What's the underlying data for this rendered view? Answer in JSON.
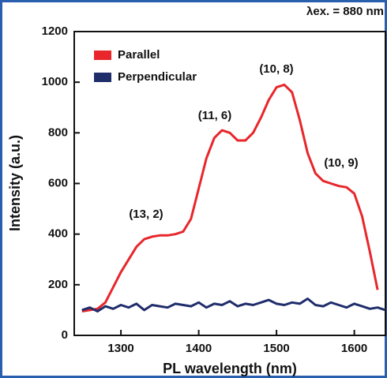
{
  "chart_data": {
    "type": "line",
    "title": "λex. = 880 nm",
    "x_label": "PL wavelength (nm)",
    "y_label": "Intensity (a.u.)",
    "x": [
      1250,
      1260,
      1270,
      1280,
      1290,
      1300,
      1310,
      1320,
      1330,
      1340,
      1350,
      1360,
      1370,
      1380,
      1390,
      1400,
      1410,
      1420,
      1430,
      1440,
      1450,
      1460,
      1470,
      1480,
      1490,
      1500,
      1510,
      1520,
      1530,
      1540,
      1550,
      1560,
      1570,
      1580,
      1590,
      1600,
      1610,
      1620,
      1630,
      1640
    ],
    "series": [
      {
        "name": "Parallel",
        "color": "#e8262b",
        "values": [
          95,
          100,
          105,
          130,
          190,
          250,
          300,
          350,
          380,
          390,
          395,
          395,
          400,
          410,
          460,
          580,
          700,
          780,
          810,
          800,
          770,
          770,
          800,
          860,
          930,
          980,
          990,
          960,
          850,
          720,
          640,
          610,
          600,
          590,
          585,
          560,
          470,
          330,
          180,
          null
        ]
      },
      {
        "name": "Perpendicular",
        "color": "#1f2d6b",
        "values": [
          100,
          110,
          95,
          115,
          105,
          120,
          110,
          125,
          100,
          120,
          115,
          110,
          125,
          120,
          115,
          130,
          110,
          125,
          120,
          135,
          115,
          125,
          120,
          130,
          140,
          125,
          120,
          130,
          125,
          145,
          120,
          115,
          130,
          120,
          110,
          125,
          115,
          105,
          110,
          100
        ]
      }
    ],
    "annotations": [
      "(13, 2)",
      "(11, 6)",
      "(10, 8)",
      "(10, 9)"
    ],
    "xlim": [
      1240,
      1640
    ],
    "ylim": [
      0,
      1200
    ],
    "xticks": [
      1300,
      1400,
      1500,
      1600
    ],
    "yticks": [
      0,
      200,
      400,
      600,
      800,
      1000,
      1200
    ],
    "legend": "top-left",
    "grid": false
  }
}
